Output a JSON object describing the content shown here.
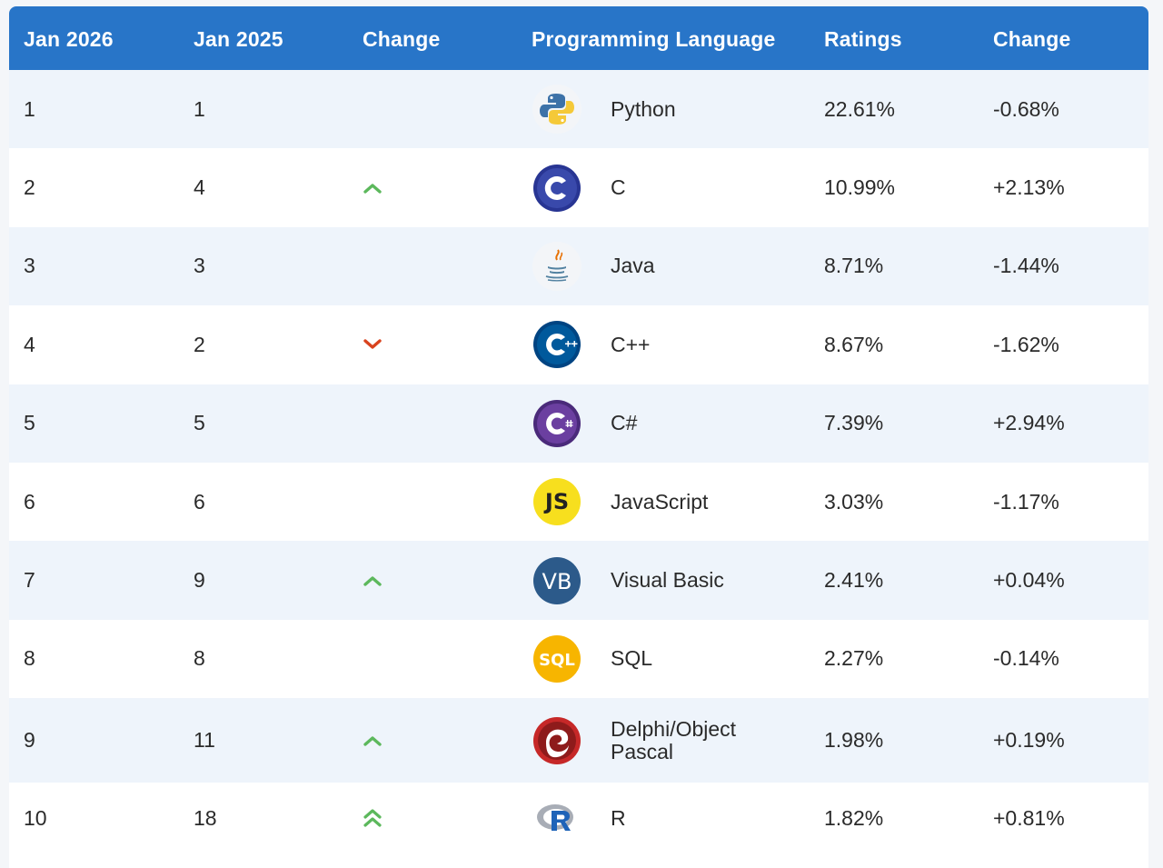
{
  "headers": {
    "jan2026": "Jan 2026",
    "jan2025": "Jan 2025",
    "change": "Change",
    "language": "Programming Language",
    "ratings": "Ratings",
    "change2": "Change"
  },
  "rows": [
    {
      "rank2026": "1",
      "rank2025": "1",
      "trend": "none",
      "language": "Python",
      "logo": "python-icon",
      "rating": "22.61%",
      "change": "-0.68%"
    },
    {
      "rank2026": "2",
      "rank2025": "4",
      "trend": "up",
      "language": "C",
      "logo": "c-icon",
      "rating": "10.99%",
      "change": "+2.13%"
    },
    {
      "rank2026": "3",
      "rank2025": "3",
      "trend": "none",
      "language": "Java",
      "logo": "java-icon",
      "rating": "8.71%",
      "change": "-1.44%"
    },
    {
      "rank2026": "4",
      "rank2025": "2",
      "trend": "down",
      "language": "C++",
      "logo": "cpp-icon",
      "rating": "8.67%",
      "change": "-1.62%"
    },
    {
      "rank2026": "5",
      "rank2025": "5",
      "trend": "none",
      "language": "C#",
      "logo": "csharp-icon",
      "rating": "7.39%",
      "change": "+2.94%"
    },
    {
      "rank2026": "6",
      "rank2025": "6",
      "trend": "none",
      "language": "JavaScript",
      "logo": "javascript-icon",
      "rating": "3.03%",
      "change": "-1.17%"
    },
    {
      "rank2026": "7",
      "rank2025": "9",
      "trend": "up",
      "language": "Visual Basic",
      "logo": "visual-basic-icon",
      "rating": "2.41%",
      "change": "+0.04%"
    },
    {
      "rank2026": "8",
      "rank2025": "8",
      "trend": "none",
      "language": "SQL",
      "logo": "sql-icon",
      "rating": "2.27%",
      "change": "-0.14%"
    },
    {
      "rank2026": "9",
      "rank2025": "11",
      "trend": "up",
      "language": "Delphi/Object\nPascal",
      "logo": "delphi-icon",
      "rating": "1.98%",
      "change": "+0.19%"
    },
    {
      "rank2026": "10",
      "rank2025": "18",
      "trend": "double-up",
      "language": "R",
      "logo": "r-icon",
      "rating": "1.82%",
      "change": "+0.81%"
    }
  ],
  "logo_text": {
    "js": "JS",
    "vb": "VB",
    "sql": "SQL"
  },
  "colors": {
    "header_bg": "#2875c8",
    "row_odd": "#eef4fb",
    "row_even": "#ffffff",
    "trend_up": "#5cb85c",
    "trend_down": "#d9431e"
  }
}
